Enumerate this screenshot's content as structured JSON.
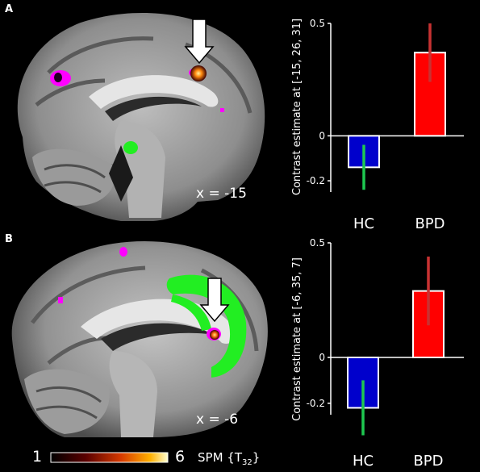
{
  "figure": {
    "panel_a": {
      "letter": "A",
      "slice_label": "x = -15",
      "ylabel": "Contrast estimate at [-15, 26, 31]",
      "ticks": [
        "0.5",
        "0",
        "-0.2"
      ]
    },
    "panel_b": {
      "letter": "B",
      "slice_label": "x = -6",
      "ylabel": "Contrast estimate at [-6, 35, 7]",
      "ticks": [
        "0.5",
        "0",
        "-0.2"
      ]
    },
    "colorbar": {
      "min_label": "1",
      "max_label": "6",
      "title_main": "SPM {T",
      "title_sub": "32",
      "title_end": "}"
    }
  },
  "chart_data": [
    {
      "type": "bar",
      "categories": [
        "HC",
        "BPD"
      ],
      "values": [
        -0.14,
        0.37
      ],
      "error_low": [
        -0.24,
        0.24
      ],
      "error_high": [
        -0.04,
        0.5
      ],
      "ylim": [
        -0.25,
        0.5
      ],
      "ylabel": "Contrast estimate at [-15, 26, 31]",
      "colors": [
        "#0000cc",
        "#ff0000"
      ],
      "error_colors": [
        "#1ec850",
        "#c83232"
      ]
    },
    {
      "type": "bar",
      "categories": [
        "HC",
        "BPD"
      ],
      "values": [
        -0.22,
        0.29
      ],
      "error_low": [
        -0.34,
        0.14
      ],
      "error_high": [
        -0.1,
        0.44
      ],
      "ylim": [
        -0.25,
        0.5
      ],
      "ylabel": "Contrast estimate at [-6, 35, 7]",
      "colors": [
        "#0000cc",
        "#ff0000"
      ],
      "error_colors": [
        "#1ec850",
        "#c83232"
      ]
    }
  ]
}
